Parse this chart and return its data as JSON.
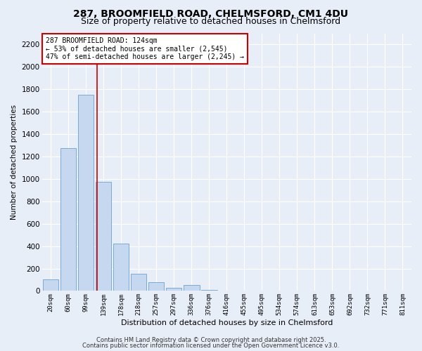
{
  "title_line1": "287, BROOMFIELD ROAD, CHELMSFORD, CM1 4DU",
  "title_line2": "Size of property relative to detached houses in Chelmsford",
  "xlabel": "Distribution of detached houses by size in Chelmsford",
  "ylabel": "Number of detached properties",
  "bins": [
    "20sqm",
    "60sqm",
    "99sqm",
    "139sqm",
    "178sqm",
    "218sqm",
    "257sqm",
    "297sqm",
    "336sqm",
    "376sqm",
    "416sqm",
    "455sqm",
    "495sqm",
    "534sqm",
    "574sqm",
    "613sqm",
    "653sqm",
    "692sqm",
    "732sqm",
    "771sqm",
    "811sqm"
  ],
  "values": [
    100,
    1275,
    1750,
    975,
    420,
    155,
    75,
    30,
    55,
    10,
    0,
    0,
    0,
    0,
    0,
    0,
    0,
    0,
    0,
    0,
    0
  ],
  "bar_color": "#c5d8f0",
  "bar_edgecolor": "#7aaad4",
  "bar_linewidth": 0.7,
  "vline_x_idx": 2.62,
  "vline_color": "#cc0000",
  "vline_linewidth": 1.2,
  "ylim": [
    0,
    2300
  ],
  "yticks": [
    0,
    200,
    400,
    600,
    800,
    1000,
    1200,
    1400,
    1600,
    1800,
    2000,
    2200
  ],
  "annotation_title": "287 BROOMFIELD ROAD: 124sqm",
  "annotation_line2": "← 53% of detached houses are smaller (2,545)",
  "annotation_line3": "47% of semi-detached houses are larger (2,245) →",
  "annotation_box_facecolor": "#ffffff",
  "annotation_box_edgecolor": "#cc0000",
  "footer_line1": "Contains HM Land Registry data © Crown copyright and database right 2025.",
  "footer_line2": "Contains public sector information licensed under the Open Government Licence v3.0.",
  "bg_color": "#e8eef8",
  "grid_color": "#ffffff",
  "title_fontsize": 10,
  "subtitle_fontsize": 9
}
